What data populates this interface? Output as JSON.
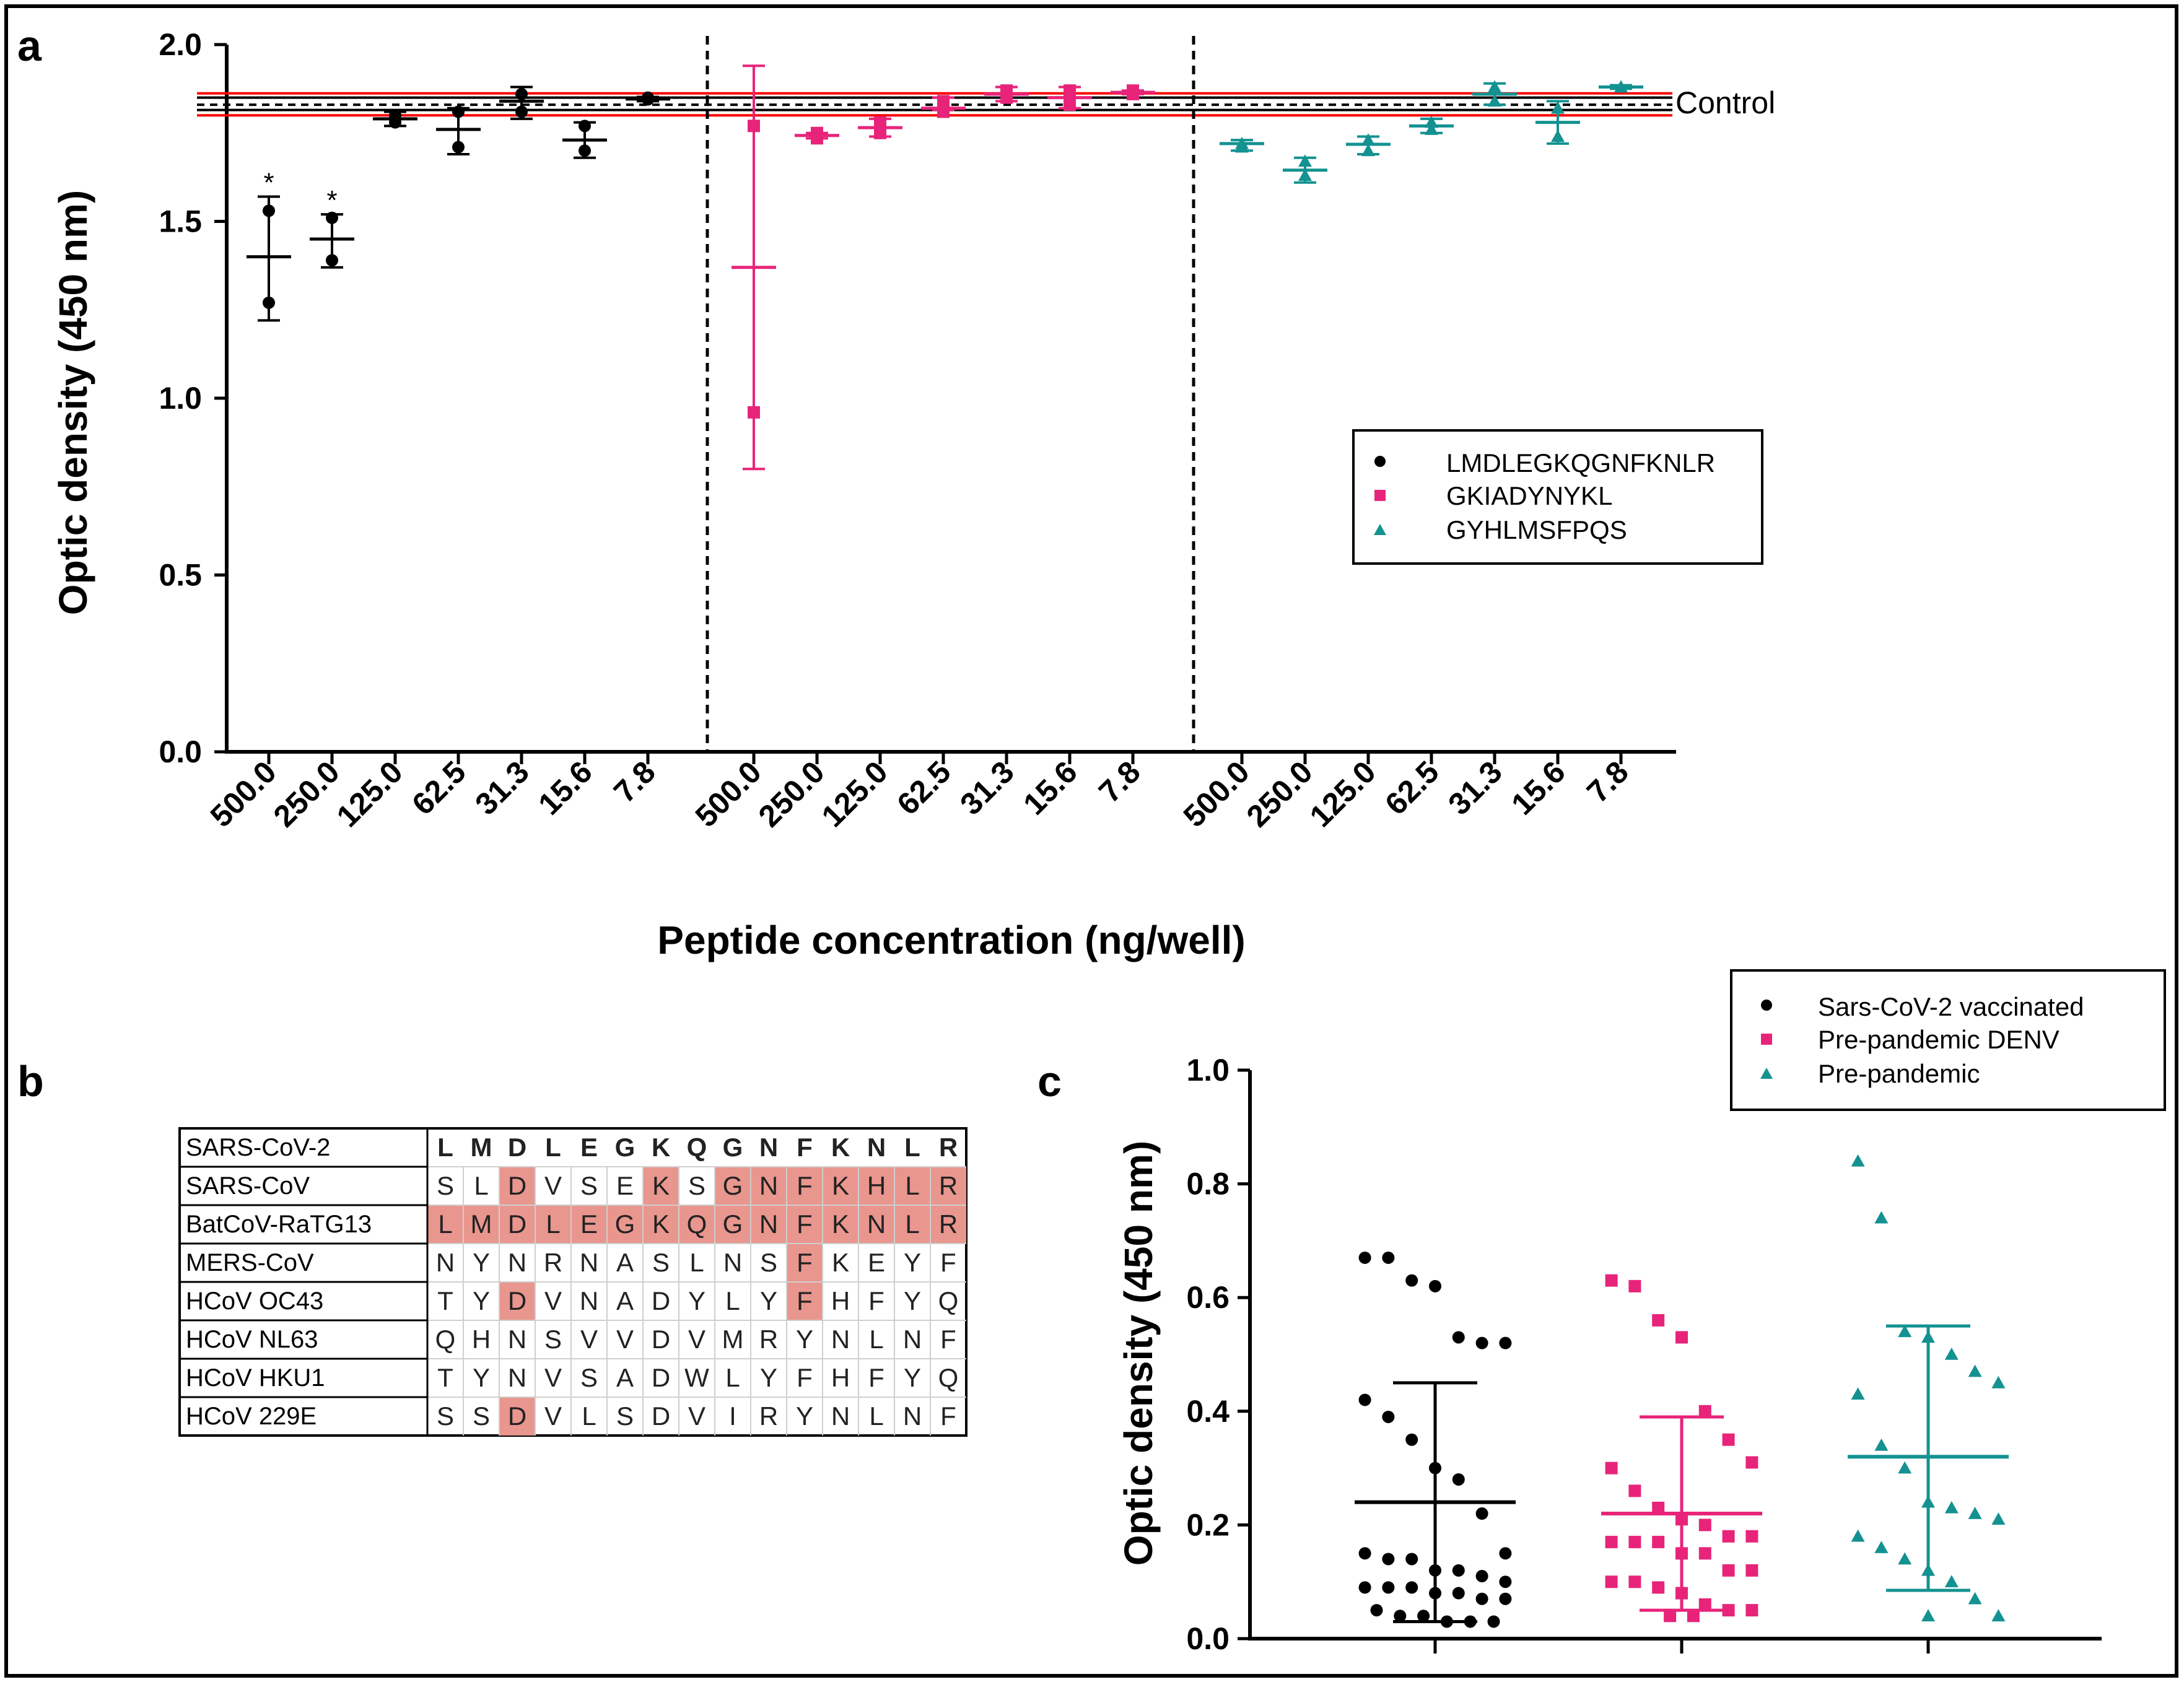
{
  "panel_labels": {
    "a": "a",
    "b": "b",
    "c": "c"
  },
  "colors": {
    "black": "#000000",
    "magenta": "#e8247a",
    "teal": "#139291",
    "red_line": "#ff0000",
    "highlight": "#e9968e"
  },
  "chart_data": [
    {
      "panel": "a",
      "type": "scatter",
      "title": "",
      "xlabel": "Peptide concentration (ng/well)",
      "ylabel": "Optic density (450 nm)",
      "ylim": [
        0.0,
        2.0
      ],
      "yticks": [
        0.0,
        0.5,
        1.0,
        1.5,
        2.0
      ],
      "ytick_labels": [
        "0.0",
        "0.5",
        "1.0",
        "1.5",
        "2.0"
      ],
      "categories": [
        "500.0",
        "250.0",
        "125.0",
        "62.5",
        "31.3",
        "15.6",
        "7.8"
      ],
      "control": {
        "label": "Control",
        "mean": 1.83,
        "inner": [
          1.815,
          1.85
        ],
        "outer": [
          1.8,
          1.862
        ]
      },
      "legend": {
        "position": "center-right"
      },
      "series": [
        {
          "name": "LMDLEGKQGNFKNLR",
          "marker": "circle",
          "color": "#000000",
          "points": [
            [
              1.53,
              1.27
            ],
            [
              1.51,
              1.39
            ],
            [
              1.8,
              1.78
            ],
            [
              1.81,
              1.71
            ],
            [
              1.86,
              1.81
            ],
            [
              1.77,
              1.7
            ],
            [
              1.845,
              1.85
            ]
          ],
          "mean": [
            1.4,
            1.45,
            1.79,
            1.76,
            1.84,
            1.73,
            1.846
          ],
          "sd_low": [
            1.22,
            1.37,
            1.77,
            1.69,
            1.79,
            1.68,
            1.84
          ],
          "sd_high": [
            1.57,
            1.52,
            1.81,
            1.82,
            1.88,
            1.78,
            1.852
          ],
          "significance": [
            "*",
            "*",
            "",
            "",
            "",
            "",
            ""
          ]
        },
        {
          "name": "GKIADYNYKL",
          "marker": "square",
          "color": "#e8247a",
          "points": [
            [
              1.77,
              0.96
            ],
            [
              1.735,
              1.75
            ],
            [
              1.78,
              1.75
            ],
            [
              1.81,
              1.84
            ],
            [
              1.87,
              1.85
            ],
            [
              1.87,
              1.83
            ],
            [
              1.86,
              1.87
            ]
          ],
          "mean": [
            1.37,
            1.743,
            1.765,
            1.82,
            1.86,
            1.85,
            1.865
          ],
          "sd_low": [
            0.8,
            1.735,
            1.74,
            1.815,
            1.84,
            1.82,
            1.86
          ],
          "sd_high": [
            1.94,
            1.75,
            1.79,
            1.85,
            1.88,
            1.88,
            1.87
          ]
        },
        {
          "name": "GYHLMSFPQS",
          "marker": "triangle",
          "color": "#139291",
          "points": [
            [
              1.71,
              1.72
            ],
            [
              1.67,
              1.63
            ],
            [
              1.73,
              1.7
            ],
            [
              1.78,
              1.76
            ],
            [
              1.88,
              1.84
            ],
            [
              1.82,
              1.74
            ],
            [
              1.88,
              1.88
            ]
          ],
          "mean": [
            1.72,
            1.645,
            1.718,
            1.77,
            1.86,
            1.78,
            1.88
          ],
          "sd_low": [
            1.7,
            1.61,
            1.69,
            1.75,
            1.83,
            1.72,
            1.875
          ],
          "sd_high": [
            1.73,
            1.68,
            1.74,
            1.79,
            1.89,
            1.84,
            1.885
          ]
        }
      ]
    },
    {
      "panel": "c",
      "type": "scatter",
      "title": "",
      "xlabel": "",
      "ylabel": "Optic density (450 nm)",
      "ylim": [
        0.0,
        1.0
      ],
      "yticks": [
        0.0,
        0.2,
        0.4,
        0.6,
        0.8,
        1.0
      ],
      "ytick_labels": [
        "0.0",
        "0.2",
        "0.4",
        "0.6",
        "0.8",
        "1.0"
      ],
      "categories": [
        "",
        "",
        ""
      ],
      "legend": {
        "position": "top-right"
      },
      "series": [
        {
          "name": "Sars-CoV-2 vaccinated",
          "marker": "circle",
          "color": "#000000",
          "mean": 0.24,
          "sd_low": 0.03,
          "sd_high": 0.45,
          "values": [
            0.67,
            0.67,
            0.63,
            0.62,
            0.53,
            0.52,
            0.52,
            0.42,
            0.39,
            0.35,
            0.3,
            0.28,
            0.22,
            0.15,
            0.15,
            0.14,
            0.14,
            0.12,
            0.12,
            0.11,
            0.1,
            0.09,
            0.09,
            0.09,
            0.08,
            0.08,
            0.07,
            0.07,
            0.05,
            0.04,
            0.04,
            0.03,
            0.03,
            0.03
          ]
        },
        {
          "name": "Pre-pandemic DENV",
          "marker": "square",
          "color": "#e8247a",
          "mean": 0.22,
          "sd_low": 0.05,
          "sd_high": 0.39,
          "values": [
            0.63,
            0.62,
            0.56,
            0.53,
            0.4,
            0.35,
            0.31,
            0.3,
            0.26,
            0.23,
            0.21,
            0.2,
            0.18,
            0.18,
            0.17,
            0.17,
            0.17,
            0.15,
            0.15,
            0.12,
            0.12,
            0.1,
            0.1,
            0.09,
            0.08,
            0.06,
            0.05,
            0.05,
            0.04,
            0.04
          ]
        },
        {
          "name": "Pre-pandemic",
          "marker": "triangle",
          "color": "#139291",
          "mean": 0.32,
          "sd_low": 0.085,
          "sd_high": 0.55,
          "values": [
            0.84,
            0.74,
            0.54,
            0.53,
            0.5,
            0.47,
            0.45,
            0.43,
            0.34,
            0.3,
            0.24,
            0.23,
            0.22,
            0.21,
            0.18,
            0.16,
            0.14,
            0.12,
            0.1,
            0.07,
            0.04,
            0.04
          ]
        }
      ]
    }
  ],
  "alignment": {
    "columns": [
      "L",
      "M",
      "D",
      "L",
      "E",
      "G",
      "K",
      "Q",
      "G",
      "N",
      "F",
      "K",
      "N",
      "L",
      "R"
    ],
    "rows": [
      {
        "name": "SARS-CoV-2",
        "residues": [
          "L",
          "M",
          "D",
          "L",
          "E",
          "G",
          "K",
          "Q",
          "G",
          "N",
          "F",
          "K",
          "N",
          "L",
          "R"
        ],
        "highlight": [
          false,
          false,
          false,
          false,
          false,
          false,
          false,
          false,
          false,
          false,
          false,
          false,
          false,
          false,
          false
        ],
        "bold": true
      },
      {
        "name": "SARS-CoV",
        "residues": [
          "S",
          "L",
          "D",
          "V",
          "S",
          "E",
          "K",
          "S",
          "G",
          "N",
          "F",
          "K",
          "H",
          "L",
          "R"
        ],
        "highlight": [
          false,
          false,
          true,
          false,
          false,
          false,
          true,
          false,
          true,
          true,
          true,
          true,
          true,
          true,
          true
        ]
      },
      {
        "name": "BatCoV-RaTG13",
        "residues": [
          "L",
          "M",
          "D",
          "L",
          "E",
          "G",
          "K",
          "Q",
          "G",
          "N",
          "F",
          "K",
          "N",
          "L",
          "R"
        ],
        "highlight": [
          true,
          true,
          true,
          true,
          true,
          true,
          true,
          true,
          true,
          true,
          true,
          true,
          true,
          true,
          true
        ]
      },
      {
        "name": "MERS-CoV",
        "residues": [
          "N",
          "Y",
          "N",
          "R",
          "N",
          "A",
          "S",
          "L",
          "N",
          "S",
          "F",
          "K",
          "E",
          "Y",
          "F"
        ],
        "highlight": [
          false,
          false,
          false,
          false,
          false,
          false,
          false,
          false,
          false,
          false,
          true,
          false,
          false,
          false,
          false
        ]
      },
      {
        "name": "HCoV OC43",
        "residues": [
          "T",
          "Y",
          "D",
          "V",
          "N",
          "A",
          "D",
          "Y",
          "L",
          "Y",
          "F",
          "H",
          "F",
          "Y",
          "Q"
        ],
        "highlight": [
          false,
          false,
          true,
          false,
          false,
          false,
          false,
          false,
          false,
          false,
          true,
          false,
          false,
          false,
          false
        ]
      },
      {
        "name": "HCoV NL63",
        "residues": [
          "Q",
          "H",
          "N",
          "S",
          "V",
          "V",
          "D",
          "V",
          "M",
          "R",
          "Y",
          "N",
          "L",
          "N",
          "F"
        ],
        "highlight": [
          false,
          false,
          false,
          false,
          false,
          false,
          false,
          false,
          false,
          false,
          false,
          false,
          false,
          false,
          false
        ]
      },
      {
        "name": "HCoV HKU1",
        "residues": [
          "T",
          "Y",
          "N",
          "V",
          "S",
          "A",
          "D",
          "W",
          "L",
          "Y",
          "F",
          "H",
          "F",
          "Y",
          "Q"
        ],
        "highlight": [
          false,
          false,
          false,
          false,
          false,
          false,
          false,
          false,
          false,
          false,
          false,
          false,
          false,
          false,
          false
        ]
      },
      {
        "name": "HCoV 229E",
        "residues": [
          "S",
          "S",
          "D",
          "V",
          "L",
          "S",
          "D",
          "V",
          "I",
          "R",
          "Y",
          "N",
          "L",
          "N",
          "F"
        ],
        "highlight": [
          false,
          false,
          true,
          false,
          false,
          false,
          false,
          false,
          false,
          false,
          false,
          false,
          false,
          false,
          false
        ]
      }
    ]
  }
}
